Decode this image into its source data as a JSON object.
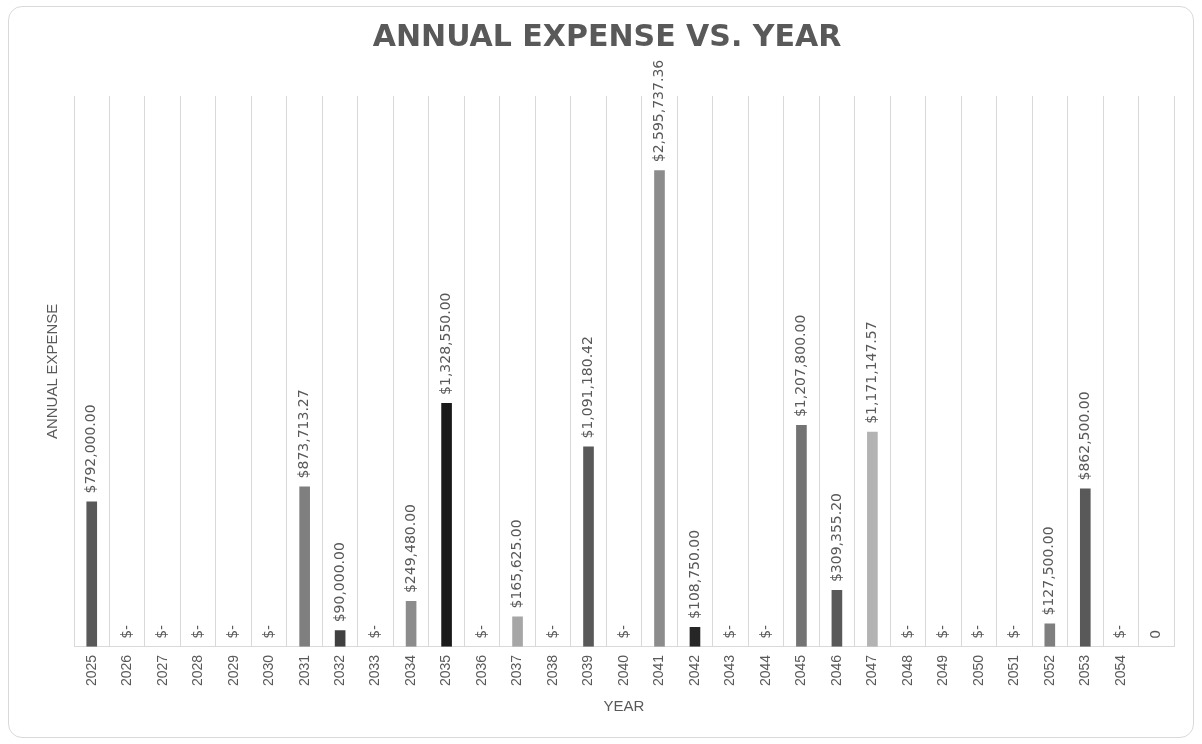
{
  "chart_data": {
    "type": "bar",
    "title": "ANNUAL EXPENSE VS. YEAR",
    "xlabel": "YEAR",
    "ylabel": "ANNUAL EXPENSE",
    "categories": [
      "2025",
      "2026",
      "2027",
      "2028",
      "2029",
      "2030",
      "2031",
      "2032",
      "2033",
      "2034",
      "2035",
      "2036",
      "2037",
      "2038",
      "2039",
      "2040",
      "2041",
      "2042",
      "2043",
      "2044",
      "2045",
      "2046",
      "2047",
      "2048",
      "2049",
      "2050",
      "2051",
      "2052",
      "2053",
      "2054",
      null
    ],
    "values": [
      792000,
      0,
      0,
      0,
      0,
      0,
      873713.27,
      90000,
      0,
      249480,
      1328550,
      0,
      165625,
      0,
      1091180.42,
      0,
      2595737.36,
      108750,
      0,
      0,
      1207800,
      309355.2,
      1171147.57,
      0,
      0,
      0,
      0,
      127500,
      862500,
      0,
      0
    ],
    "value_labels": [
      "$792,000.00",
      "$-",
      "$-",
      "$-",
      "$-",
      "$-",
      "$873,713.27",
      "$90,000.00",
      "$-",
      "$249,480.00",
      "$1,328,550.00",
      "$-",
      "$165,625.00",
      "$-",
      "$1,091,180.42",
      "$-",
      "$2,595,737.36",
      "$108,750.00",
      "$-",
      "$-",
      "$1,207,800.00",
      "$309,355.20",
      "$1,171,147.57",
      "$-",
      "$-",
      "$-",
      "$-",
      "$127,500.00",
      "$862,500.00",
      "$-",
      "0"
    ],
    "colors": [
      "#595959",
      "#595959",
      "#595959",
      "#595959",
      "#595959",
      "#595959",
      "#7f7f7f",
      "#404040",
      "#595959",
      "#8c8c8c",
      "#1a1a1a",
      "#595959",
      "#a6a6a6",
      "#595959",
      "#595959",
      "#595959",
      "#8c8c8c",
      "#262626",
      "#595959",
      "#595959",
      "#737373",
      "#595959",
      "#b3b3b3",
      "#595959",
      "#595959",
      "#595959",
      "#595959",
      "#7f7f7f",
      "#595959",
      "#595959",
      "#595959"
    ],
    "ylim": [
      0,
      3000000
    ],
    "tick_labels": "x",
    "grid": "x",
    "legend": false
  }
}
